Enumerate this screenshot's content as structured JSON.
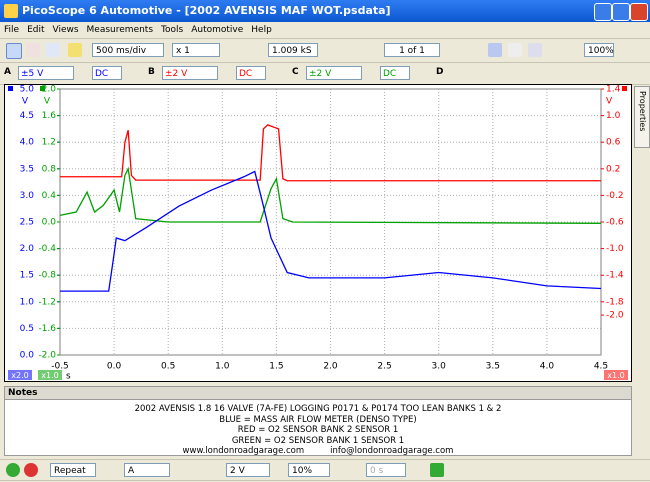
{
  "window": {
    "title": "PicoScope 6 Automotive - [2002 AVENSIS MAF WOT.psdata]"
  },
  "menu": [
    "File",
    "Edit",
    "Views",
    "Measurements",
    "Tools",
    "Automotive",
    "Help"
  ],
  "toolbar": {
    "timebase": "500 ms/div",
    "zoom": "x 1",
    "samples": "1.009 kS",
    "buffer": "1 of 1",
    "zoom_pct": "100%"
  },
  "channels": [
    {
      "name": "A",
      "range": "±5 V",
      "coupling": "DC"
    },
    {
      "name": "B",
      "range": "±2 V",
      "coupling": "DC"
    },
    {
      "name": "C",
      "range": "±2 V",
      "coupling": "DC"
    },
    {
      "name": "D"
    }
  ],
  "side_tab": "Properties",
  "scope": {
    "type": "line",
    "x_unit": "s",
    "xlim": [
      -0.5,
      4.5
    ],
    "xticks": [
      -0.5,
      {
        "value": 0,
        "label": "0.0"
      },
      0.5,
      {
        "value": 1,
        "label": "1.0"
      },
      1.5,
      {
        "value": 2,
        "label": "2.0"
      },
      2.5,
      {
        "value": 3,
        "label": "3.0"
      },
      3.5,
      {
        "value": 4,
        "label": "4.0"
      },
      4.5
    ],
    "axes": [
      {
        "unit": "V",
        "color": "#0000ff",
        "scale_label": "x2.0",
        "ylim": [
          0,
          5
        ],
        "yticks": [
          {
            "value": 5,
            "label": "5.0"
          },
          4.5,
          {
            "value": 4,
            "label": "4.0"
          },
          3.5,
          {
            "value": 3,
            "label": "3.0"
          },
          2.5,
          {
            "value": 2,
            "label": "2.0"
          },
          1.5,
          {
            "value": 1,
            "label": "1.0"
          },
          0.5,
          {
            "value": 0,
            "label": "0.0"
          }
        ]
      },
      {
        "unit": "V",
        "color": "#00a000",
        "scale_label": "x1.0",
        "ylim": [
          -2,
          2
        ],
        "yticks": [
          {
            "value": 2,
            "label": "2.0"
          },
          1.6,
          1.2,
          0.8,
          0.4,
          {
            "value": 0,
            "label": "0.0"
          },
          -0.4,
          -0.8,
          -1.2,
          -1.6,
          {
            "value": -2,
            "label": "-2.0"
          }
        ]
      },
      {
        "unit": "V",
        "color": "#ff0000",
        "scale_label": "x1.0",
        "ylim": [
          -2.6,
          1.4
        ],
        "yticks": [
          1.4,
          {
            "value": 1,
            "label": "1.0"
          },
          0.6,
          0.2,
          -0.2,
          -0.6,
          {
            "value": -1,
            "label": "-1.0"
          },
          -1.4,
          -1.8,
          {
            "value": -2,
            "label": "-2.0"
          }
        ]
      }
    ],
    "traces": [
      {
        "axis": 1,
        "color": "#00a000",
        "x": [
          -0.5,
          -0.35,
          -0.25,
          -0.18,
          -0.1,
          0.0,
          0.05,
          0.1,
          0.13,
          0.2,
          0.5,
          1.35,
          1.45,
          1.5,
          1.56,
          1.65,
          4.5
        ],
        "values": [
          0.1,
          0.15,
          0.45,
          0.15,
          0.25,
          0.48,
          0.15,
          0.7,
          0.8,
          0.05,
          0.0,
          0.0,
          0.5,
          0.65,
          0.05,
          0.0,
          -0.02
        ]
      },
      {
        "axis": 2,
        "color": "#ff0000",
        "x": [
          -0.5,
          0.07,
          0.1,
          0.13,
          0.16,
          0.2,
          1.35,
          1.38,
          1.42,
          1.52,
          1.56,
          1.6,
          4.5
        ],
        "values": [
          0.08,
          0.08,
          0.6,
          0.78,
          0.1,
          0.03,
          0.03,
          0.8,
          0.86,
          0.8,
          0.05,
          0.02,
          0.02
        ]
      },
      {
        "axis": 0,
        "color": "#0000ff",
        "x": [
          -0.5,
          -0.05,
          0.0,
          0.02,
          0.1,
          0.3,
          0.6,
          0.9,
          1.2,
          1.3,
          1.38,
          1.45,
          1.6,
          1.8,
          2.5,
          3.0,
          3.5,
          4.0,
          4.5
        ],
        "values": [
          1.2,
          1.2,
          1.9,
          2.2,
          2.15,
          2.4,
          2.8,
          3.1,
          3.35,
          3.45,
          2.8,
          2.2,
          1.55,
          1.45,
          1.45,
          1.55,
          1.45,
          1.3,
          1.25
        ]
      }
    ]
  },
  "notes": {
    "title": "Notes",
    "lines": [
      "2002 AVENSIS 1.8 16 VALVE (7A-FE) LOGGING P0171 & P0174 TOO LEAN BANKS 1 & 2",
      "BLUE = MASS AIR FLOW METER (DENSO TYPE)",
      "RED = O2 SENSOR BANK 2 SENSOR 1",
      "GREEN = O2 SENSOR BANK 1 SENSOR 1"
    ],
    "website": "www.londonroadgarage.com",
    "email": "info@londonroadgarage.com"
  },
  "statusbar": {
    "mode": "Repeat",
    "trigger_channel": "A",
    "trigger_level": "2 V",
    "pretrigger": "10%",
    "delay": "0 s"
  }
}
